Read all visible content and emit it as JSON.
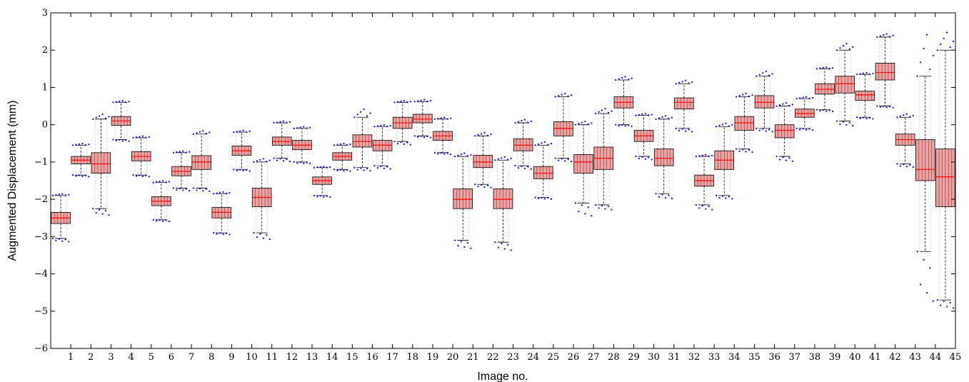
{
  "chart_data": {
    "type": "box",
    "title": "",
    "xlabel": "Image no.",
    "ylabel": "Augmented Displacement (mm)",
    "ylim": [
      -6,
      3
    ],
    "yticks": [
      -6,
      -5,
      -4,
      -3,
      -2,
      -1,
      0,
      1,
      2,
      3
    ],
    "xlim": [
      0,
      45
    ],
    "categories": [
      "1",
      "2",
      "3",
      "4",
      "5",
      "6",
      "7",
      "8",
      "9",
      "10",
      "11",
      "12",
      "13",
      "14",
      "15",
      "16",
      "17",
      "18",
      "19",
      "20",
      "21",
      "22",
      "23",
      "24",
      "25",
      "26",
      "27",
      "28",
      "29",
      "30",
      "31",
      "32",
      "33",
      "34",
      "35",
      "36",
      "37",
      "38",
      "39",
      "40",
      "41",
      "42",
      "43",
      "44",
      "45"
    ],
    "grid": false,
    "box_style": {
      "box_color": "#000000",
      "median_color": "#ff0000",
      "whisker_color": "#000000",
      "outlier_color": "#0000ff"
    },
    "boxes": [
      {
        "category": "1",
        "median": -2.5,
        "q1": -2.65,
        "q3": -2.35,
        "whisker_low": -3.05,
        "whisker_high": -1.9,
        "outlier_low": -3.15,
        "outlier_high": -1.85
      },
      {
        "category": "2",
        "median": -0.95,
        "q1": -1.05,
        "q3": -0.85,
        "whisker_low": -1.35,
        "whisker_high": -0.55,
        "outlier_low": -1.4,
        "outlier_high": -0.5
      },
      {
        "category": "3",
        "median": -1.05,
        "q1": -1.3,
        "q3": -0.75,
        "whisker_low": -2.25,
        "whisker_high": 0.15,
        "outlier_low": -2.45,
        "outlier_high": 0.3
      },
      {
        "category": "4",
        "median": 0.1,
        "q1": -0.02,
        "q3": 0.22,
        "whisker_low": -0.4,
        "whisker_high": 0.6,
        "outlier_low": -0.45,
        "outlier_high": 0.65
      },
      {
        "category": "5",
        "median": -0.85,
        "q1": -0.97,
        "q3": -0.72,
        "whisker_low": -1.35,
        "whisker_high": -0.35,
        "outlier_low": -1.4,
        "outlier_high": -0.3
      },
      {
        "category": "6",
        "median": -2.05,
        "q1": -2.17,
        "q3": -1.93,
        "whisker_low": -2.55,
        "whisker_high": -1.55,
        "outlier_low": -2.6,
        "outlier_high": -1.5
      },
      {
        "category": "7",
        "median": -1.25,
        "q1": -1.37,
        "q3": -1.12,
        "whisker_low": -1.7,
        "whisker_high": -0.75,
        "outlier_low": -1.78,
        "outlier_high": -0.7
      },
      {
        "category": "8",
        "median": -1.0,
        "q1": -1.2,
        "q3": -0.83,
        "whisker_low": -1.7,
        "whisker_high": -0.25,
        "outlier_low": -1.8,
        "outlier_high": -0.15
      },
      {
        "category": "9",
        "median": -2.35,
        "q1": -2.5,
        "q3": -2.22,
        "whisker_low": -2.9,
        "whisker_high": -1.85,
        "outlier_low": -2.95,
        "outlier_high": -1.8
      },
      {
        "category": "10",
        "median": -0.7,
        "q1": -0.82,
        "q3": -0.57,
        "whisker_low": -1.2,
        "whisker_high": -0.2,
        "outlier_low": -1.25,
        "outlier_high": -0.15
      },
      {
        "category": "11",
        "median": -1.95,
        "q1": -2.2,
        "q3": -1.7,
        "whisker_low": -2.9,
        "whisker_high": -1.0,
        "outlier_low": -3.1,
        "outlier_high": -0.9
      },
      {
        "category": "12",
        "median": -0.45,
        "q1": -0.55,
        "q3": -0.33,
        "whisker_low": -0.9,
        "whisker_high": 0.05,
        "outlier_low": -1.0,
        "outlier_high": 0.1
      },
      {
        "category": "13",
        "median": -0.55,
        "q1": -0.67,
        "q3": -0.42,
        "whisker_low": -1.0,
        "whisker_high": -0.1,
        "outlier_low": -1.05,
        "outlier_high": -0.05
      },
      {
        "category": "14",
        "median": -1.5,
        "q1": -1.6,
        "q3": -1.4,
        "whisker_low": -1.9,
        "whisker_high": -1.15,
        "outlier_low": -1.95,
        "outlier_high": -1.12
      },
      {
        "category": "15",
        "median": -0.85,
        "q1": -0.95,
        "q3": -0.75,
        "whisker_low": -1.2,
        "whisker_high": -0.55,
        "outlier_low": -1.25,
        "outlier_high": -0.5
      },
      {
        "category": "16",
        "median": -0.45,
        "q1": -0.6,
        "q3": -0.27,
        "whisker_low": -1.15,
        "whisker_high": 0.2,
        "outlier_low": -1.25,
        "outlier_high": 0.45
      },
      {
        "category": "17",
        "median": -0.55,
        "q1": -0.7,
        "q3": -0.42,
        "whisker_low": -1.1,
        "whisker_high": -0.05,
        "outlier_low": -1.2,
        "outlier_high": 0.0
      },
      {
        "category": "18",
        "median": 0.05,
        "q1": -0.1,
        "q3": 0.2,
        "whisker_low": -0.45,
        "whisker_high": 0.6,
        "outlier_low": -0.55,
        "outlier_high": 0.65
      },
      {
        "category": "19",
        "median": 0.15,
        "q1": 0.05,
        "q3": 0.28,
        "whisker_low": -0.3,
        "whisker_high": 0.62,
        "outlier_low": -0.35,
        "outlier_high": 0.68
      },
      {
        "category": "20",
        "median": -0.3,
        "q1": -0.42,
        "q3": -0.18,
        "whisker_low": -0.75,
        "whisker_high": 0.15,
        "outlier_low": -0.8,
        "outlier_high": 0.2
      },
      {
        "category": "21",
        "median": -2.0,
        "q1": -2.25,
        "q3": -1.72,
        "whisker_low": -3.1,
        "whisker_high": -0.85,
        "outlier_low": -3.35,
        "outlier_high": -0.75
      },
      {
        "category": "22",
        "median": -1.0,
        "q1": -1.15,
        "q3": -0.82,
        "whisker_low": -1.6,
        "whisker_high": -0.3,
        "outlier_low": -1.7,
        "outlier_high": -0.2
      },
      {
        "category": "23",
        "median": -2.0,
        "q1": -2.25,
        "q3": -1.72,
        "whisker_low": -3.15,
        "whisker_high": -0.95,
        "outlier_low": -3.4,
        "outlier_high": -0.85
      },
      {
        "category": "24",
        "median": -0.55,
        "q1": -0.7,
        "q3": -0.38,
        "whisker_low": -1.1,
        "whisker_high": 0.05,
        "outlier_low": -1.2,
        "outlier_high": 0.15
      },
      {
        "category": "25",
        "median": -1.3,
        "q1": -1.45,
        "q3": -1.12,
        "whisker_low": -1.95,
        "whisker_high": -0.55,
        "outlier_low": -2.0,
        "outlier_high": -0.45
      },
      {
        "category": "26",
        "median": -0.1,
        "q1": -0.3,
        "q3": 0.08,
        "whisker_low": -0.9,
        "whisker_high": 0.75,
        "outlier_low": -1.0,
        "outlier_high": 0.85
      },
      {
        "category": "27",
        "median": -1.0,
        "q1": -1.3,
        "q3": -0.8,
        "whisker_low": -2.1,
        "whisker_high": 0.0,
        "outlier_low": -2.5,
        "outlier_high": 0.1
      },
      {
        "category": "28",
        "median": -0.9,
        "q1": -1.2,
        "q3": -0.6,
        "whisker_low": -2.15,
        "whisker_high": 0.3,
        "outlier_low": -2.3,
        "outlier_high": 0.45
      },
      {
        "category": "29",
        "median": 0.6,
        "q1": 0.45,
        "q3": 0.75,
        "whisker_low": 0.0,
        "whisker_high": 1.2,
        "outlier_low": -0.05,
        "outlier_high": 1.3
      },
      {
        "category": "30",
        "median": -0.3,
        "q1": -0.45,
        "q3": -0.15,
        "whisker_low": -0.85,
        "whisker_high": 0.25,
        "outlier_low": -0.95,
        "outlier_high": 0.3
      },
      {
        "category": "31",
        "median": -0.9,
        "q1": -1.1,
        "q3": -0.65,
        "whisker_low": -1.85,
        "whisker_high": 0.15,
        "outlier_low": -2.0,
        "outlier_high": 0.25
      },
      {
        "category": "32",
        "median": 0.6,
        "q1": 0.42,
        "q3": 0.72,
        "whisker_low": -0.1,
        "whisker_high": 1.1,
        "outlier_low": -0.2,
        "outlier_high": 1.2
      },
      {
        "category": "33",
        "median": -1.5,
        "q1": -1.65,
        "q3": -1.35,
        "whisker_low": -2.15,
        "whisker_high": -0.85,
        "outlier_low": -2.3,
        "outlier_high": -0.8
      },
      {
        "category": "34",
        "median": -0.95,
        "q1": -1.2,
        "q3": -0.7,
        "whisker_low": -1.9,
        "whisker_high": -0.05,
        "outlier_low": -2.0,
        "outlier_high": 0.05
      },
      {
        "category": "35",
        "median": 0.05,
        "q1": -0.15,
        "q3": 0.22,
        "whisker_low": -0.65,
        "whisker_high": 0.75,
        "outlier_low": -0.75,
        "outlier_high": 0.85
      },
      {
        "category": "36",
        "median": 0.6,
        "q1": 0.45,
        "q3": 0.78,
        "whisker_low": -0.1,
        "whisker_high": 1.3,
        "outlier_low": -0.2,
        "outlier_high": 1.45
      },
      {
        "category": "37",
        "median": -0.15,
        "q1": -0.35,
        "q3": -0.0,
        "whisker_low": -0.85,
        "whisker_high": 0.5,
        "outlier_low": -1.0,
        "outlier_high": 0.6
      },
      {
        "category": "38",
        "median": 0.3,
        "q1": 0.2,
        "q3": 0.42,
        "whisker_low": -0.1,
        "whisker_high": 0.7,
        "outlier_low": -0.15,
        "outlier_high": 0.75
      },
      {
        "category": "39",
        "median": 0.95,
        "q1": 0.82,
        "q3": 1.1,
        "whisker_low": 0.4,
        "whisker_high": 1.5,
        "outlier_low": 0.35,
        "outlier_high": 1.55
      },
      {
        "category": "40",
        "median": 1.1,
        "q1": 0.85,
        "q3": 1.3,
        "whisker_low": 0.1,
        "whisker_high": 2.0,
        "outlier_low": -0.05,
        "outlier_high": 2.2
      },
      {
        "category": "41",
        "median": 0.8,
        "q1": 0.65,
        "q3": 0.9,
        "whisker_low": 0.2,
        "whisker_high": 1.35,
        "outlier_low": 0.15,
        "outlier_high": 1.4
      },
      {
        "category": "42",
        "median": 1.4,
        "q1": 1.2,
        "q3": 1.65,
        "whisker_low": 0.5,
        "whisker_high": 2.35,
        "outlier_low": 0.45,
        "outlier_high": 2.45
      },
      {
        "category": "43",
        "median": -0.4,
        "q1": -0.55,
        "q3": -0.25,
        "whisker_low": -1.05,
        "whisker_high": 0.2,
        "outlier_low": -1.15,
        "outlier_high": 0.3
      },
      {
        "category": "44",
        "median": -1.2,
        "q1": -1.5,
        "q3": -0.4,
        "whisker_low": -3.4,
        "whisker_high": 1.3,
        "outlier_low": -4.95,
        "outlier_high": 2.6
      },
      {
        "category": "45",
        "median": -1.4,
        "q1": -2.2,
        "q3": -0.65,
        "whisker_low": -4.7,
        "whisker_high": 2.0,
        "outlier_low": -4.95,
        "outlier_high": 2.55
      }
    ]
  }
}
